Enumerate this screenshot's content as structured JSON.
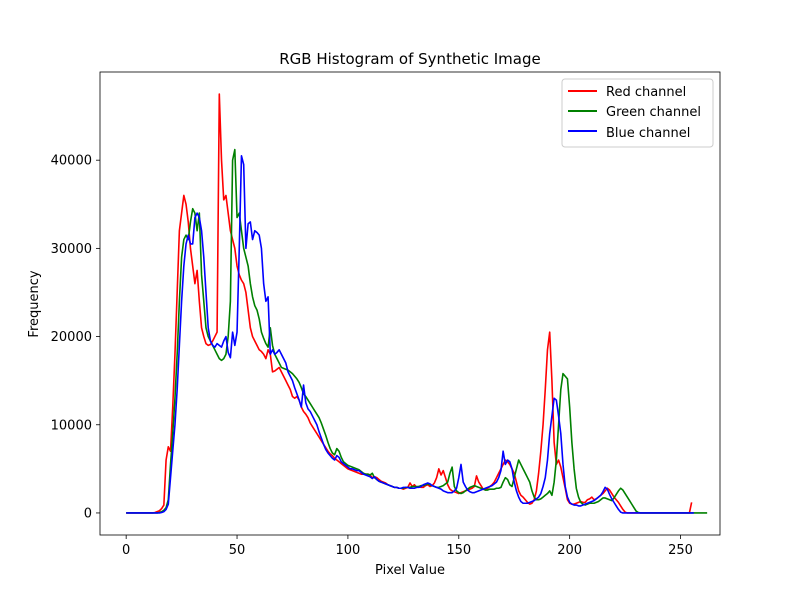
{
  "chart_data": {
    "type": "line",
    "title": "RGB Histogram of Synthetic Image",
    "xlabel": "Pixel Value",
    "ylabel": "Frequency",
    "xlim": [
      -11.8,
      267.8
    ],
    "ylim": [
      -2500,
      50000
    ],
    "x_ticks": [
      0,
      50,
      100,
      150,
      200,
      250
    ],
    "y_ticks": [
      0,
      10000,
      20000,
      30000,
      40000
    ],
    "grid": false,
    "legend_placement": "top-right",
    "x_step": 1,
    "series": [
      {
        "name": "Red channel",
        "color": "#ff0000",
        "values": [
          0,
          0,
          0,
          0,
          0,
          0,
          0,
          0,
          0,
          0,
          0,
          0,
          0,
          50,
          150,
          250,
          500,
          900,
          6000,
          7500,
          7000,
          12000,
          18000,
          25000,
          32000,
          34000,
          36000,
          35000,
          33000,
          30000,
          28000,
          26000,
          27500,
          24000,
          21000,
          20000,
          19200,
          19000,
          19100,
          19500,
          20000,
          20500,
          47500,
          40000,
          35500,
          36000,
          34000,
          32000,
          31000,
          30000,
          28000,
          27000,
          26400,
          26000,
          25000,
          23000,
          21000,
          20000,
          19500,
          19000,
          18500,
          18300,
          18000,
          17500,
          18500,
          18000,
          16000,
          16100,
          16300,
          16500,
          16000,
          15500,
          15000,
          14500,
          14000,
          13200,
          13000,
          13200,
          12800,
          12000,
          11500,
          11200,
          10800,
          10200,
          9800,
          9400,
          9000,
          8600,
          8200,
          7800,
          7400,
          7000,
          6700,
          6500,
          6200,
          6000,
          5800,
          5600,
          5400,
          5200,
          5000,
          4900,
          4800,
          4700,
          4600,
          4500,
          4400,
          4400,
          4400,
          4400,
          4300,
          4000,
          4100,
          4000,
          3800,
          3600,
          3500,
          3400,
          3200,
          3100,
          3000,
          2900,
          2900,
          2800,
          2800,
          2700,
          2800,
          2900,
          3400,
          3000,
          3200,
          2900,
          3000,
          2900,
          2900,
          3100,
          3200,
          3000,
          3100,
          3400,
          4000,
          5000,
          4300,
          4800,
          4000,
          3200,
          2700,
          2500,
          2400,
          2300,
          2200,
          2300,
          2400,
          2500,
          2600,
          2700,
          2800,
          3000,
          4200,
          3500,
          3100,
          2700,
          2600,
          2800,
          3000,
          3200,
          3500,
          4000,
          4500,
          5000,
          5500,
          6000,
          5800,
          5500,
          5000,
          4500,
          3500,
          2500,
          2000,
          1800,
          1500,
          1200,
          1000,
          1100,
          1500,
          2500,
          4500,
          7000,
          10000,
          14000,
          18500,
          20500,
          15000,
          8000,
          5500,
          6000,
          5200,
          4000,
          2800,
          1500,
          1100,
          1000,
          1000,
          1100,
          1200,
          1300,
          1200,
          1200,
          1500,
          1600,
          1800,
          1500,
          1600,
          1800,
          2000,
          2200,
          2500,
          2800,
          2600,
          2200,
          1800,
          1500,
          1200,
          800,
          400,
          100,
          0,
          0,
          0,
          0,
          0,
          0,
          0,
          0,
          0,
          0,
          0,
          0,
          0,
          0,
          0,
          0,
          0,
          0,
          0,
          0,
          0,
          0,
          0,
          0,
          0,
          0,
          0,
          0,
          0,
          1200
        ]
      },
      {
        "name": "Green channel",
        "color": "#008000",
        "values": [
          0,
          0,
          0,
          0,
          0,
          0,
          0,
          0,
          0,
          0,
          0,
          0,
          0,
          0,
          0,
          50,
          150,
          300,
          600,
          1500,
          5500,
          9000,
          13000,
          18000,
          24000,
          29000,
          31000,
          31500,
          31000,
          33000,
          34500,
          34000,
          32000,
          34000,
          27000,
          24000,
          21000,
          20000,
          19500,
          19000,
          18500,
          18000,
          17500,
          17300,
          17500,
          18000,
          20000,
          24000,
          40000,
          41200,
          33500,
          34000,
          32000,
          30000,
          29000,
          28000,
          26000,
          24500,
          23500,
          23000,
          22000,
          20500,
          19800,
          19200,
          18800,
          21000,
          19000,
          18000,
          17500,
          17000,
          16500,
          16400,
          16300,
          16200,
          16000,
          15800,
          15500,
          15200,
          14800,
          14200,
          13500,
          13200,
          12800,
          12400,
          12000,
          11600,
          11200,
          10800,
          10200,
          9500,
          8800,
          8000,
          7300,
          6800,
          6600,
          7300,
          7000,
          6300,
          5800,
          5600,
          5400,
          5300,
          5200,
          5100,
          5000,
          4900,
          4700,
          4500,
          4400,
          4400,
          4300,
          4500,
          4000,
          3800,
          3600,
          3500,
          3400,
          3300,
          3200,
          3100,
          3000,
          2900,
          2900,
          2800,
          2800,
          2800,
          2900,
          2900,
          2900,
          3000,
          3000,
          3000,
          3000,
          3100,
          3100,
          3200,
          3300,
          3200,
          3100,
          3000,
          2900,
          2900,
          3000,
          3100,
          3300,
          3500,
          4500,
          5200,
          3000,
          2500,
          2300,
          2200,
          2300,
          2500,
          2700,
          2900,
          3000,
          3100,
          3000,
          2900,
          2800,
          2700,
          2600,
          2600,
          2700,
          2700,
          2700,
          2800,
          2800,
          2900,
          3500,
          4000,
          3800,
          3200,
          3000,
          4000,
          5000,
          6000,
          5500,
          5000,
          4500,
          4000,
          3500,
          2500,
          1800,
          1500,
          1500,
          1600,
          1800,
          2000,
          2200,
          2500,
          2000,
          3500,
          6000,
          10000,
          14000,
          15800,
          15500,
          15200,
          12000,
          8000,
          5000,
          2800,
          1800,
          1200,
          1000,
          900,
          1000,
          1100,
          1100,
          1100,
          1200,
          1300,
          1500,
          1700,
          1700,
          1600,
          1500,
          1400,
          1700,
          2100,
          2500,
          2800,
          2600,
          2200,
          1800,
          1400,
          1000,
          600,
          200,
          50,
          0,
          0,
          0,
          0,
          0,
          0,
          0,
          0,
          0,
          0,
          0,
          0,
          0,
          0,
          0,
          0,
          0,
          0,
          0,
          0,
          0,
          0,
          0,
          0,
          0,
          0,
          0,
          0,
          0,
          0,
          0
        ]
      },
      {
        "name": "Blue channel",
        "color": "#0000ff",
        "values": [
          0,
          0,
          0,
          0,
          0,
          0,
          0,
          0,
          0,
          0,
          0,
          0,
          0,
          0,
          0,
          0,
          50,
          150,
          400,
          1000,
          4000,
          7000,
          10000,
          14000,
          19000,
          24000,
          28000,
          30500,
          31500,
          30500,
          30500,
          33500,
          34000,
          33500,
          32000,
          29000,
          25000,
          21000,
          19500,
          19000,
          18800,
          19200,
          19000,
          18800,
          19500,
          20000,
          18200,
          17600,
          20500,
          19000,
          20500,
          30000,
          40500,
          39500,
          30000,
          32800,
          33000,
          31000,
          32000,
          31800,
          31500,
          30000,
          26000,
          24000,
          24500,
          18000,
          18500,
          18000,
          18200,
          18500,
          18000,
          17500,
          17000,
          16000,
          15500,
          15000,
          14200,
          13500,
          12800,
          12000,
          14500,
          12500,
          11800,
          11500,
          11000,
          10500,
          10000,
          9200,
          8500,
          7800,
          7200,
          6800,
          6500,
          6200,
          6000,
          6500,
          6300,
          5800,
          5600,
          5400,
          5200,
          5000,
          5000,
          4900,
          4800,
          4800,
          4600,
          4400,
          4300,
          4200,
          4100,
          3900,
          4100,
          3800,
          3600,
          3500,
          3400,
          3300,
          3200,
          3100,
          3000,
          2900,
          2900,
          2800,
          2800,
          2900,
          2900,
          2900,
          2800,
          2800,
          2800,
          2900,
          2900,
          3000,
          3200,
          3300,
          3400,
          3300,
          3100,
          3000,
          2900,
          2800,
          2700,
          2500,
          2400,
          2300,
          2300,
          2300,
          2500,
          2800,
          4000,
          5500,
          3500,
          3000,
          2600,
          2400,
          2300,
          2300,
          2400,
          2500,
          2600,
          2700,
          2800,
          2900,
          3000,
          3100,
          3300,
          3500,
          4000,
          4800,
          7000,
          5500,
          6000,
          5800,
          5000,
          3500,
          2500,
          1800,
          1300,
          1100,
          1100,
          1100,
          1200,
          1300,
          1400,
          1600,
          1800,
          2200,
          3000,
          4000,
          6000,
          9000,
          11000,
          13000,
          12800,
          11000,
          9000,
          5500,
          3000,
          1800,
          1200,
          1000,
          900,
          900,
          800,
          800,
          900,
          1000,
          1100,
          1200,
          1300,
          1400,
          1600,
          1800,
          2000,
          2400,
          2900,
          2700,
          2100,
          1600,
          1200,
          800,
          400,
          100,
          0,
          0,
          0,
          0,
          0,
          0,
          0,
          0,
          0,
          0,
          0,
          0,
          0,
          0,
          0,
          0,
          0,
          0,
          0,
          0,
          0,
          0,
          0,
          0,
          0,
          0,
          0,
          0,
          0,
          0,
          0,
          0,
          0
        ]
      }
    ]
  }
}
